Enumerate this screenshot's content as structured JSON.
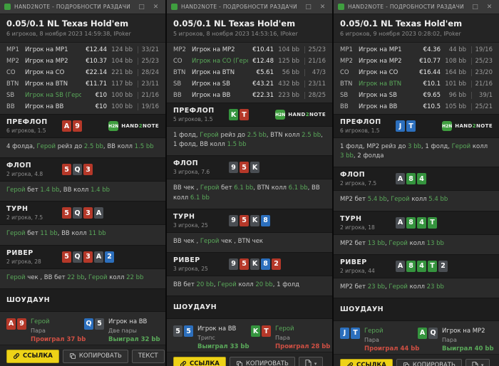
{
  "icons": {
    "maximize": "□",
    "close": "✕",
    "caret": "▾"
  },
  "colors": {
    "accent_green": "#5aa95a",
    "win_green": "#5aa95a",
    "lose_red": "#cf4f43",
    "button_yellow": "#eed317",
    "suits": {
      "s": "#4a4e53",
      "h": "#b53829",
      "d": "#2c6fbd",
      "c": "#35943e"
    }
  },
  "logo": {
    "icon_text": "H2N",
    "parts": [
      "HAND",
      "2",
      "NOTE"
    ]
  },
  "panels": [
    {
      "titlebar": {
        "title": "HAND2NOTE - ПОДРОБНОСТИ РАЗДАЧИ"
      },
      "header": {
        "title": "0.05/0.1 NL Texas Hold'em",
        "subtitle": "6 игроков, 8 ноября 2023 14:59:38, IPoker"
      },
      "players": [
        {
          "position": "MP1",
          "name": "Игрок на MP1",
          "hero": false,
          "stack": "€12.44",
          "bb": "124 bb",
          "stats": "33/21"
        },
        {
          "position": "MP2",
          "name": "Игрок на MP2",
          "hero": false,
          "stack": "€10.37",
          "bb": "104 bb",
          "stats": "25/23"
        },
        {
          "position": "CO",
          "name": "Игрок на CO",
          "hero": false,
          "stack": "€22.14",
          "bb": "221 bb",
          "stats": "28/24"
        },
        {
          "position": "BTN",
          "name": "Игрок на BTN",
          "hero": false,
          "stack": "€11.71",
          "bb": "117 bb",
          "stats": "23/11"
        },
        {
          "position": "SB",
          "name": "Игрок на SB (Герой)",
          "hero": true,
          "stack": "€10",
          "bb": "100 bb",
          "stats": "21/16"
        },
        {
          "position": "BB",
          "name": "Игрок на BB",
          "hero": false,
          "stack": "€10",
          "bb": "100 bb",
          "stats": "19/16"
        }
      ],
      "streets": [
        {
          "name": "ПРЕФЛОП",
          "info": "6 игроков, 1.5",
          "show_logo": true,
          "cards": [
            {
              "r": "A",
              "s": "h"
            },
            {
              "r": "9",
              "s": "h"
            }
          ],
          "actions": [
            {
              "t": "4 фолда, "
            },
            {
              "t": "Герой",
              "s": "hero"
            },
            {
              "t": " рейз до "
            },
            {
              "t": "2.5 bb",
              "s": "amount"
            },
            {
              "t": ", BB колл "
            },
            {
              "t": "1.5 bb",
              "s": "amount"
            }
          ]
        },
        {
          "name": "ФЛОП",
          "info": "2 игрока, 4.8",
          "show_logo": false,
          "cards": [
            {
              "r": "5",
              "s": "h"
            },
            {
              "r": "Q",
              "s": "s"
            },
            {
              "r": "3",
              "s": "h"
            }
          ],
          "actions": [
            {
              "t": "Герой",
              "s": "hero"
            },
            {
              "t": " бет "
            },
            {
              "t": "1.4 bb",
              "s": "amount"
            },
            {
              "t": ", BB колл "
            },
            {
              "t": "1.4 bb",
              "s": "amount"
            }
          ]
        },
        {
          "name": "ТУРН",
          "info": "2 игрока, 7.5",
          "show_logo": false,
          "cards": [
            {
              "r": "5",
              "s": "h"
            },
            {
              "r": "Q",
              "s": "s"
            },
            {
              "r": "3",
              "s": "h"
            },
            {
              "r": "A",
              "s": "s"
            }
          ],
          "actions": [
            {
              "t": "Герой",
              "s": "hero"
            },
            {
              "t": " бет "
            },
            {
              "t": "11 bb",
              "s": "amount"
            },
            {
              "t": ", BB колл "
            },
            {
              "t": "11 bb",
              "s": "amount"
            }
          ]
        },
        {
          "name": "РИВЕР",
          "info": "2 игрока, 28",
          "show_logo": false,
          "cards": [
            {
              "r": "5",
              "s": "h"
            },
            {
              "r": "Q",
              "s": "s"
            },
            {
              "r": "3",
              "s": "h"
            },
            {
              "r": "A",
              "s": "s"
            },
            {
              "r": "2",
              "s": "d"
            }
          ],
          "actions": [
            {
              "t": "Герой",
              "s": "hero"
            },
            {
              "t": " чек , BB бет "
            },
            {
              "t": "22 bb",
              "s": "amount"
            },
            {
              "t": ", "
            },
            {
              "t": "Герой",
              "s": "hero"
            },
            {
              "t": " колл "
            },
            {
              "t": "22 bb",
              "s": "amount"
            }
          ]
        }
      ],
      "showdown": {
        "name": "ШОУДАУН",
        "players": [
          {
            "cards": [
              {
                "r": "A",
                "s": "h"
              },
              {
                "r": "9",
                "s": "h"
              }
            ],
            "name": "Герой",
            "hero": true,
            "combo": "Пара",
            "result": "Проиграл 37 bb",
            "outcome": "lose"
          },
          {
            "cards": [
              {
                "r": "Q",
                "s": "d"
              },
              {
                "r": "5",
                "s": "s"
              }
            ],
            "name": "Игрок на BB",
            "hero": false,
            "combo": "Две пары",
            "result": "Выиграл 32 bb",
            "outcome": "win"
          }
        ]
      },
      "footer": {
        "link_label": "ССЫЛКА",
        "copy_label": "КОПИРОВАТЬ",
        "text_label": "ТЕКСТ",
        "text_icon_only": false
      }
    },
    {
      "titlebar": {
        "title": "HAND2NOTE - ПОДРОБНОСТИ РАЗДАЧИ"
      },
      "header": {
        "title": "0.05/0.1 NL Texas Hold'em",
        "subtitle": "5 игроков, 8 ноября 2023 14:53:16, IPoker"
      },
      "players": [
        {
          "position": "MP2",
          "name": "Игрок на MP2",
          "hero": false,
          "stack": "€10.41",
          "bb": "104 bb",
          "stats": "25/23"
        },
        {
          "position": "CO",
          "name": "Игрок на CO (Герой)",
          "hero": true,
          "stack": "€12.48",
          "bb": "125 bb",
          "stats": "21/16"
        },
        {
          "position": "BTN",
          "name": "Игрок на BTN",
          "hero": false,
          "stack": "€5.61",
          "bb": "56 bb",
          "stats": "47/3"
        },
        {
          "position": "SB",
          "name": "Игрок на SB",
          "hero": false,
          "stack": "€43.21",
          "bb": "432 bb",
          "stats": "23/11"
        },
        {
          "position": "BB",
          "name": "Игрок на BB",
          "hero": false,
          "stack": "€22.31",
          "bb": "223 bb",
          "stats": "28/25"
        }
      ],
      "streets": [
        {
          "name": "ПРЕФЛОП",
          "info": "5 игроков, 1.5",
          "show_logo": true,
          "cards": [
            {
              "r": "K",
              "s": "c"
            },
            {
              "r": "T",
              "s": "h"
            }
          ],
          "actions": [
            {
              "t": "1 фолд, "
            },
            {
              "t": "Герой",
              "s": "hero"
            },
            {
              "t": " рейз до "
            },
            {
              "t": "2.5 bb",
              "s": "amount"
            },
            {
              "t": ", BTN колл "
            },
            {
              "t": "2.5 bb",
              "s": "amount"
            },
            {
              "t": ", 1 фолд, BB колл "
            },
            {
              "t": "1.5 bb",
              "s": "amount"
            }
          ]
        },
        {
          "name": "ФЛОП",
          "info": "3 игрока, 7.6",
          "show_logo": false,
          "cards": [
            {
              "r": "9",
              "s": "s"
            },
            {
              "r": "5",
              "s": "h"
            },
            {
              "r": "K",
              "s": "s"
            }
          ],
          "actions": [
            {
              "t": "BB чек , "
            },
            {
              "t": "Герой",
              "s": "hero"
            },
            {
              "t": " бет "
            },
            {
              "t": "6.1 bb",
              "s": "amount"
            },
            {
              "t": ", BTN колл "
            },
            {
              "t": "6.1 bb",
              "s": "amount"
            },
            {
              "t": ", BB колл "
            },
            {
              "t": "6.1 bb",
              "s": "amount"
            }
          ]
        },
        {
          "name": "ТУРН",
          "info": "3 игрока, 25",
          "show_logo": false,
          "cards": [
            {
              "r": "9",
              "s": "s"
            },
            {
              "r": "5",
              "s": "h"
            },
            {
              "r": "K",
              "s": "s"
            },
            {
              "r": "8",
              "s": "d"
            }
          ],
          "actions": [
            {
              "t": "BB чек , "
            },
            {
              "t": "Герой",
              "s": "hero"
            },
            {
              "t": " чек , BTN чек"
            }
          ]
        },
        {
          "name": "РИВЕР",
          "info": "3 игрока, 25",
          "show_logo": false,
          "cards": [
            {
              "r": "9",
              "s": "s"
            },
            {
              "r": "5",
              "s": "h"
            },
            {
              "r": "K",
              "s": "s"
            },
            {
              "r": "8",
              "s": "d"
            },
            {
              "r": "2",
              "s": "h"
            }
          ],
          "actions": [
            {
              "t": "BB бет "
            },
            {
              "t": "20 bb",
              "s": "amount"
            },
            {
              "t": ", "
            },
            {
              "t": "Герой",
              "s": "hero"
            },
            {
              "t": " колл "
            },
            {
              "t": "20 bb",
              "s": "amount"
            },
            {
              "t": ", 1 фолд"
            }
          ]
        }
      ],
      "showdown": {
        "name": "ШОУДАУН",
        "players": [
          {
            "cards": [
              {
                "r": "5",
                "s": "s"
              },
              {
                "r": "5",
                "s": "d"
              }
            ],
            "name": "Игрок на BB",
            "hero": false,
            "combo": "Трипс",
            "result": "Выиграл 33 bb",
            "outcome": "win"
          },
          {
            "cards": [
              {
                "r": "K",
                "s": "c"
              },
              {
                "r": "T",
                "s": "h"
              }
            ],
            "name": "Герой",
            "hero": true,
            "combo": "Пара",
            "result": "Проиграл 28 bb",
            "outcome": "lose"
          }
        ]
      },
      "footer": {
        "link_label": "ССЫЛКА",
        "copy_label": "КОПИРОВАТЬ",
        "text_label": "",
        "text_icon_only": true
      }
    },
    {
      "titlebar": {
        "title": "HAND2NOTE - ПОДРОБНОСТИ РАЗДАЧИ"
      },
      "header": {
        "title": "0.05/0.1 NL Texas Hold'em",
        "subtitle": "6 игроков, 9 ноября 2023 0:28:02, IPoker"
      },
      "players": [
        {
          "position": "MP1",
          "name": "Игрок на MP1",
          "hero": false,
          "stack": "€4.36",
          "bb": "44 bb",
          "stats": "19/16"
        },
        {
          "position": "MP2",
          "name": "Игрок на MP2",
          "hero": false,
          "stack": "€10.77",
          "bb": "108 bb",
          "stats": "25/23"
        },
        {
          "position": "CO",
          "name": "Игрок на CO",
          "hero": false,
          "stack": "€16.44",
          "bb": "164 bb",
          "stats": "23/20"
        },
        {
          "position": "BTN",
          "name": "Игрок на BTN",
          "hero": true,
          "stack": "€10.1",
          "bb": "101 bb",
          "stats": "21/16"
        },
        {
          "position": "SB",
          "name": "Игрок на SB",
          "hero": false,
          "stack": "€9.65",
          "bb": "96 bb",
          "stats": "39/1"
        },
        {
          "position": "BB",
          "name": "Игрок на BB",
          "hero": false,
          "stack": "€10.5",
          "bb": "105 bb",
          "stats": "25/21"
        }
      ],
      "streets": [
        {
          "name": "ПРЕФЛОП",
          "info": "6 игроков, 1.5",
          "show_logo": true,
          "cards": [
            {
              "r": "J",
              "s": "d"
            },
            {
              "r": "T",
              "s": "d"
            }
          ],
          "actions": [
            {
              "t": "1 фолд, MP2 рейз до "
            },
            {
              "t": "3 bb",
              "s": "amount"
            },
            {
              "t": ", 1 фолд, "
            },
            {
              "t": "Герой",
              "s": "hero"
            },
            {
              "t": " колл "
            },
            {
              "t": "3 bb",
              "s": "amount"
            },
            {
              "t": ", 2 фолда"
            }
          ]
        },
        {
          "name": "ФЛОП",
          "info": "2 игрока, 7.5",
          "show_logo": false,
          "cards": [
            {
              "r": "A",
              "s": "s"
            },
            {
              "r": "8",
              "s": "c"
            },
            {
              "r": "4",
              "s": "c"
            }
          ],
          "actions": [
            {
              "t": "MP2 бет "
            },
            {
              "t": "5.4 bb",
              "s": "amount"
            },
            {
              "t": ", "
            },
            {
              "t": "Герой",
              "s": "hero"
            },
            {
              "t": " колл "
            },
            {
              "t": "5.4 bb",
              "s": "amount"
            }
          ]
        },
        {
          "name": "ТУРН",
          "info": "2 игрока, 18",
          "show_logo": false,
          "cards": [
            {
              "r": "A",
              "s": "s"
            },
            {
              "r": "8",
              "s": "c"
            },
            {
              "r": "4",
              "s": "c"
            },
            {
              "r": "T",
              "s": "c"
            }
          ],
          "actions": [
            {
              "t": "MP2 бет "
            },
            {
              "t": "13 bb",
              "s": "amount"
            },
            {
              "t": ", "
            },
            {
              "t": "Герой",
              "s": "hero"
            },
            {
              "t": " колл "
            },
            {
              "t": "13 bb",
              "s": "amount"
            }
          ]
        },
        {
          "name": "РИВЕР",
          "info": "2 игрока, 44",
          "show_logo": false,
          "cards": [
            {
              "r": "A",
              "s": "s"
            },
            {
              "r": "8",
              "s": "c"
            },
            {
              "r": "4",
              "s": "c"
            },
            {
              "r": "T",
              "s": "c"
            },
            {
              "r": "2",
              "s": "s"
            }
          ],
          "actions": [
            {
              "t": "MP2 бет "
            },
            {
              "t": "23 bb",
              "s": "amount"
            },
            {
              "t": ", "
            },
            {
              "t": "Герой",
              "s": "hero"
            },
            {
              "t": " колл "
            },
            {
              "t": "23 bb",
              "s": "amount"
            }
          ]
        }
      ],
      "showdown": {
        "name": "ШОУДАУН",
        "players": [
          {
            "cards": [
              {
                "r": "J",
                "s": "d"
              },
              {
                "r": "T",
                "s": "d"
              }
            ],
            "name": "Герой",
            "hero": true,
            "combo": "Пара",
            "result": "Проиграл 44 bb",
            "outcome": "lose"
          },
          {
            "cards": [
              {
                "r": "A",
                "s": "c"
              },
              {
                "r": "Q",
                "s": "s"
              }
            ],
            "name": "Игрок на MP2",
            "hero": false,
            "combo": "Пара",
            "result": "Выиграл 40 bb",
            "outcome": "win"
          }
        ]
      },
      "footer": {
        "link_label": "ССЫЛКА",
        "copy_label": "КОПИРОВАТЬ",
        "text_label": "",
        "text_icon_only": true
      }
    }
  ]
}
